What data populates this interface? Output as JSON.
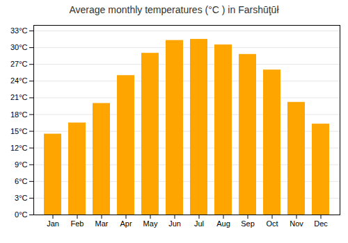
{
  "chart_data": {
    "type": "bar",
    "title": "Average monthly temperatures (°C ) in Farshūţūł",
    "categories": [
      "Jan",
      "Feb",
      "Mar",
      "Apr",
      "May",
      "Jun",
      "Jul",
      "Aug",
      "Sep",
      "Oct",
      "Nov",
      "Dec"
    ],
    "values": [
      14.5,
      16.5,
      20.0,
      25.0,
      29.0,
      31.3,
      31.5,
      30.5,
      28.8,
      26.0,
      20.2,
      16.3
    ],
    "color": "#FFA500",
    "ylim": [
      0,
      34
    ],
    "yticks": [
      {
        "value": 0,
        "label": "0°C"
      },
      {
        "value": 3,
        "label": "3°C"
      },
      {
        "value": 6,
        "label": "6°C"
      },
      {
        "value": 9,
        "label": "9°C"
      },
      {
        "value": 12,
        "label": "12°C"
      },
      {
        "value": 15,
        "label": "15°C"
      },
      {
        "value": 18,
        "label": "18°C"
      },
      {
        "value": 21,
        "label": "21°C"
      },
      {
        "value": 24,
        "label": "24°C"
      },
      {
        "value": 27,
        "label": "27°C"
      },
      {
        "value": 30,
        "label": "30°C"
      },
      {
        "value": 33,
        "label": "33°C"
      }
    ],
    "grid": true
  }
}
